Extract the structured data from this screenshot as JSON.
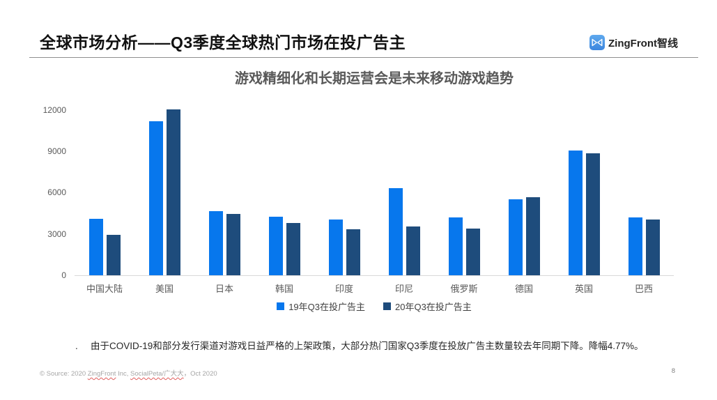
{
  "slide": {
    "title": "全球市场分析——Q3季度全球热门市场在投广告主",
    "page_number": "8"
  },
  "logo": {
    "text": "ZingFront智线",
    "icon": "bowtie-icon",
    "icon_color_top": "#5FA9EE",
    "icon_color_bottom": "#3C86DE"
  },
  "chart_data": {
    "type": "bar",
    "title": "游戏精细化和长期运营会是未来移动游戏趋势",
    "categories": [
      "中国大陆",
      "美国",
      "日本",
      "韩国",
      "印度",
      "印尼",
      "俄罗斯",
      "德国",
      "英国",
      "巴西"
    ],
    "series": [
      {
        "name": "19年Q3在投广告主",
        "color": "#0777ED",
        "values": [
          4100,
          11200,
          4650,
          4250,
          4050,
          6350,
          4200,
          5500,
          9050,
          4200
        ]
      },
      {
        "name": "20年Q3在投广告主",
        "color": "#1E4C7C",
        "values": [
          2950,
          12050,
          4450,
          3800,
          3350,
          3550,
          3400,
          5650,
          8850,
          4050
        ]
      }
    ],
    "xlabel": "",
    "ylabel": "",
    "ylim": [
      0,
      12600
    ],
    "yticks": [
      0,
      3000,
      6000,
      9000,
      12000
    ],
    "grid": false,
    "legend_position": "bottom",
    "axis_line_color": "#d9d9d9"
  },
  "footnote": {
    "bullet": ".",
    "text": "由于COVID-19和部分发行渠道对游戏日益严格的上架政策，大部分热门国家Q3季度在投放广告主数量较去年同期下降。降幅4.77%。"
  },
  "source": {
    "prefix": "© Source: 2020 ",
    "brand1": "ZingFront",
    "mid": " Inc, ",
    "brand2": "SocialPeta/广大大",
    "suffix": "，Oct 2020"
  }
}
